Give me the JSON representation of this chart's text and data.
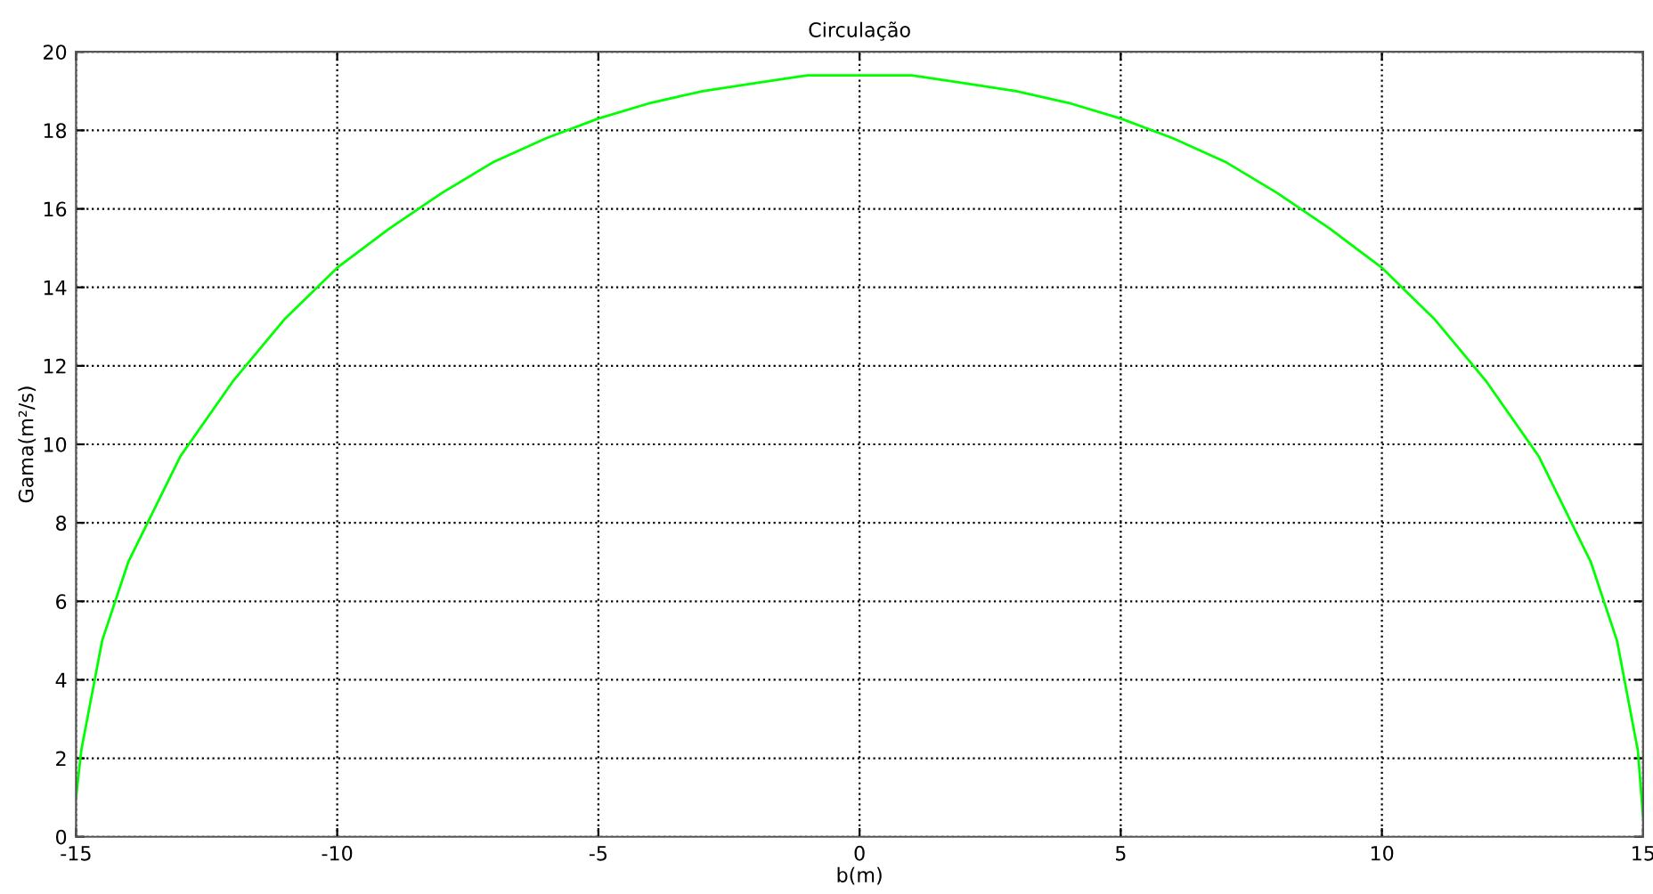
{
  "chart_data": {
    "type": "line",
    "title": "Circulação",
    "xlabel": "b(m)",
    "ylabel": "Gama(m²/s)",
    "x": [
      -15,
      -14.9,
      -14.5,
      -14,
      -13,
      -12,
      -11,
      -10,
      -9,
      -8,
      -7,
      -6,
      -5,
      -4,
      -3,
      -2,
      -1,
      0,
      1,
      2,
      3,
      4,
      5,
      6,
      7,
      8,
      9,
      10,
      11,
      12,
      13,
      14,
      14.5,
      14.9,
      15
    ],
    "series": [
      {
        "color": "#00ff00",
        "values": [
          1.0,
          2.2,
          5.0,
          7.0,
          9.7,
          11.6,
          13.2,
          14.5,
          15.5,
          16.4,
          17.2,
          17.8,
          18.3,
          18.7,
          19.0,
          19.2,
          19.4,
          19.4,
          19.4,
          19.2,
          19.0,
          18.7,
          18.3,
          17.8,
          17.2,
          16.4,
          15.5,
          14.5,
          13.2,
          11.6,
          9.7,
          7.0,
          5.0,
          2.2,
          0.5
        ]
      }
    ],
    "xlim": [
      -15,
      15
    ],
    "ylim": [
      0,
      20
    ],
    "xticks": [
      -15,
      -10,
      -5,
      0,
      5,
      10,
      15
    ],
    "yticks": [
      0,
      2,
      4,
      6,
      8,
      10,
      12,
      14,
      16,
      18,
      20
    ],
    "grid": true,
    "line_style": "solid",
    "marker": "none"
  }
}
